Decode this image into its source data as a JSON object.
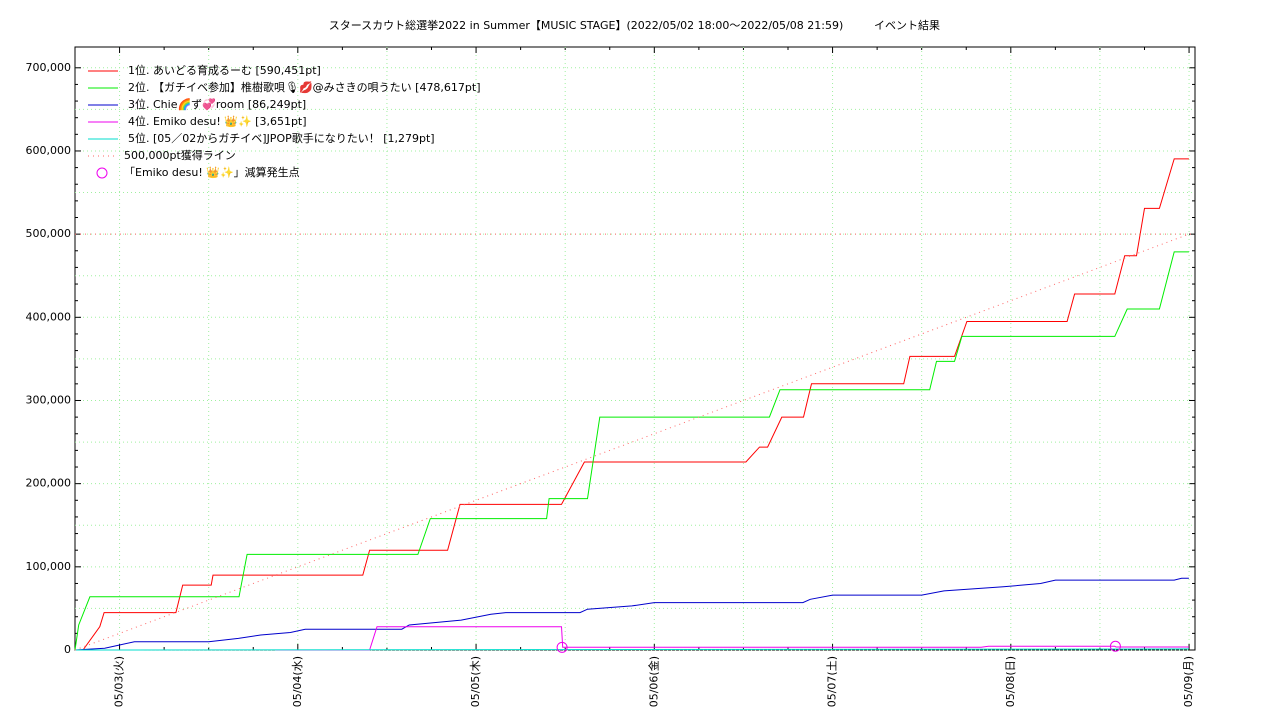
{
  "chart_data": {
    "type": "line",
    "title": "スタースカウト総選挙2022 in Summer【MUSIC STAGE】(2022/05/02 18:00～2022/05/08 21:59)",
    "subtitle": "イベント結果",
    "xlim": [
      "2022-05-02 18:00",
      "2022-05-09 00:48"
    ],
    "xticks": [
      {
        "value": "2022-05-03 00:00",
        "label": "05/03(火)"
      },
      {
        "value": "2022-05-04 00:00",
        "label": "05/04(水)"
      },
      {
        "value": "2022-05-05 00:00",
        "label": "05/05(木)"
      },
      {
        "value": "2022-05-06 00:00",
        "label": "05/06(金)"
      },
      {
        "value": "2022-05-07 00:00",
        "label": "05/07(土)"
      },
      {
        "value": "2022-05-08 00:00",
        "label": "05/08(日)"
      },
      {
        "value": "2022-05-09 00:00",
        "label": "05/09(月)"
      }
    ],
    "ylim": [
      0,
      725000
    ],
    "yticks": [
      0,
      {
        "value": 100000,
        "label": "100,000"
      },
      {
        "value": 200000,
        "label": "200,000"
      },
      {
        "value": 300000,
        "label": "300,000"
      },
      {
        "value": 400000,
        "label": "400,000"
      },
      {
        "value": 500000,
        "label": "500,000"
      },
      {
        "value": 600000,
        "label": "600,000"
      },
      {
        "value": 700000,
        "label": "700,000"
      }
    ],
    "grid": true,
    "legend": "top-left",
    "series": [
      {
        "name": "1位. あいどる育成るーむ [590,451pt]",
        "color": "#ff0000",
        "style": "line",
        "x": [
          "2022-05-02 19:05",
          "2022-05-02 21:20",
          "2022-05-02 21:55",
          "2022-05-03 07:35",
          "2022-05-03 08:30",
          "2022-05-03 12:20",
          "2022-05-03 12:35",
          "2022-05-04 08:45",
          "2022-05-04 09:40",
          "2022-05-04 20:10",
          "2022-05-04 21:50",
          "2022-05-05 11:30",
          "2022-05-05 14:35",
          "2022-05-06 12:20",
          "2022-05-06 14:10",
          "2022-05-06 15:15",
          "2022-05-06 17:10",
          "2022-05-06 20:05",
          "2022-05-06 21:10",
          "2022-05-07 09:35",
          "2022-05-07 10:25",
          "2022-05-07 16:25",
          "2022-05-07 18:05",
          "2022-05-08 07:35",
          "2022-05-08 08:35",
          "2022-05-08 14:00",
          "2022-05-08 15:20",
          "2022-05-08 16:55",
          "2022-05-08 18:00",
          "2022-05-08 20:00",
          "2022-05-08 22:00",
          "2022-05-08 23:59"
        ],
        "values": [
          0,
          28000,
          45000,
          45000,
          78000,
          78000,
          90000,
          90000,
          120000,
          120000,
          175000,
          175000,
          226000,
          226000,
          244000,
          244000,
          280000,
          280000,
          320000,
          320000,
          353000,
          353000,
          395000,
          395000,
          428000,
          428000,
          474000,
          474000,
          531000,
          531000,
          590451,
          590451
        ]
      },
      {
        "name": "2位. 【ガチイベ参加】椎樹歌唄🎙💋@みさきの唄うたい [478,617pt]",
        "color": "#00ee00",
        "style": "line",
        "x": [
          "2022-05-02 18:00",
          "2022-05-02 18:30",
          "2022-05-02 20:00",
          "2022-05-03 16:05",
          "2022-05-03 17:10",
          "2022-05-04 16:10",
          "2022-05-04 17:50",
          "2022-05-05 09:30",
          "2022-05-05 09:50",
          "2022-05-05 15:00",
          "2022-05-05 16:40",
          "2022-05-06 15:30",
          "2022-05-06 16:55",
          "2022-05-07 13:05",
          "2022-05-07 14:00",
          "2022-05-07 16:25",
          "2022-05-07 17:25",
          "2022-05-08 14:00",
          "2022-05-08 15:40",
          "2022-05-08 20:00",
          "2022-05-08 22:00",
          "2022-05-08 23:59"
        ],
        "values": [
          0,
          30000,
          64000,
          64000,
          115000,
          115000,
          158000,
          158000,
          182000,
          182000,
          280000,
          280000,
          313000,
          313000,
          347000,
          347000,
          377000,
          377000,
          410000,
          410000,
          478617,
          478617
        ]
      },
      {
        "name": "3位. Chie🌈ず💞room [86,249pt]",
        "color": "#0000cc",
        "style": "line",
        "x": [
          "2022-05-02 18:00",
          "2022-05-02 22:00",
          "2022-05-03 00:00",
          "2022-05-03 02:00",
          "2022-05-03 12:00",
          "2022-05-03 16:00",
          "2022-05-03 19:00",
          "2022-05-03 23:00",
          "2022-05-04 01:00",
          "2022-05-04 14:00",
          "2022-05-04 15:00",
          "2022-05-04 22:00",
          "2022-05-05 02:00",
          "2022-05-05 04:00",
          "2022-05-05 14:00",
          "2022-05-05 15:00",
          "2022-05-05 21:00",
          "2022-05-06 00:00",
          "2022-05-06 20:00",
          "2022-05-06 21:00",
          "2022-05-07 00:00",
          "2022-05-07 12:00",
          "2022-05-07 15:00",
          "2022-05-07 23:00",
          "2022-05-08 04:00",
          "2022-05-08 06:00",
          "2022-05-08 22:00",
          "2022-05-08 23:00",
          "2022-05-08 23:59"
        ],
        "values": [
          0,
          2000,
          6000,
          10000,
          10000,
          14000,
          18000,
          21000,
          25000,
          25000,
          30000,
          36000,
          43000,
          45000,
          45000,
          49000,
          53000,
          57000,
          57000,
          61000,
          66000,
          66000,
          71000,
          76000,
          80000,
          84000,
          84000,
          86249,
          86249
        ]
      },
      {
        "name": "4位. Emiko desu! 👑✨ [3,651pt]",
        "color": "#ee00ee",
        "style": "line",
        "x": [
          "2022-05-03 21:00",
          "2022-05-04 09:40",
          "2022-05-04 10:40",
          "2022-05-05 11:30",
          "2022-05-05 11:40",
          "2022-05-07 20:00",
          "2022-05-07 21:00",
          "2022-05-08 14:00",
          "2022-05-08 14:10",
          "2022-05-08 23:59"
        ],
        "values": [
          0,
          0,
          28000,
          28000,
          3200,
          3200,
          4500,
          4500,
          3651,
          3651
        ]
      },
      {
        "name": "5位. [05／02からガチイベ]JPOP歌手になりたい！ [1,279pt]",
        "color": "#00ddcc",
        "style": "line",
        "x": [
          "2022-05-02 18:00",
          "2022-05-08 23:59"
        ],
        "values": [
          0,
          1279
        ]
      },
      {
        "name": "500,000pt獲得ライン",
        "color": "#ff6666",
        "style": "dotted",
        "x": [
          "2022-05-02 18:00",
          "2022-05-09 00:00"
        ],
        "values": [
          0,
          500000
        ]
      },
      {
        "name": "「Emiko desu! 👑✨」減算発生点",
        "color": "#ee00ee",
        "style": "marker",
        "x": [
          "2022-05-05 11:35",
          "2022-05-08 14:05"
        ],
        "values": [
          3200,
          4500
        ]
      }
    ]
  }
}
